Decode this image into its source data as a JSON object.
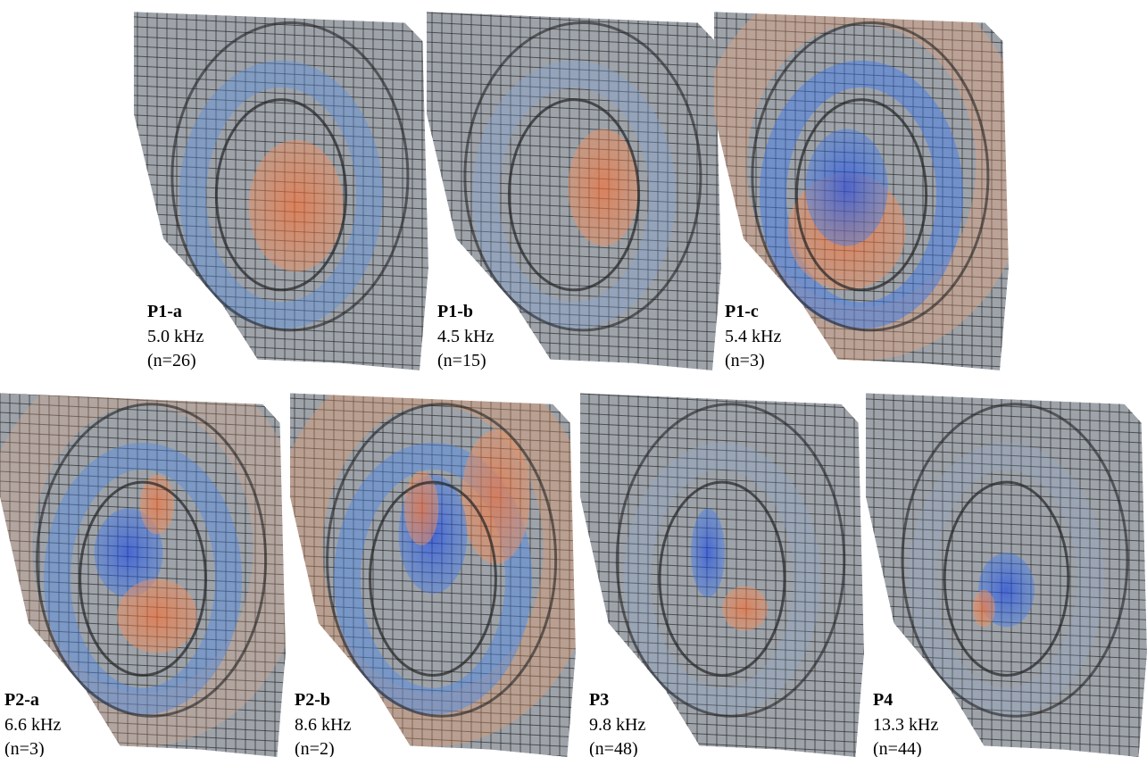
{
  "panels": [
    {
      "label": "P1-a",
      "frequency": "5.0 kHz",
      "count": "(n=26)"
    },
    {
      "label": "P1-b",
      "frequency": "4.5 kHz",
      "count": "(n=15)"
    },
    {
      "label": "P1-c",
      "frequency": "5.4 kHz",
      "count": "(n=3)"
    },
    {
      "label": "P2-a",
      "frequency": "6.6 kHz",
      "count": "(n=3)"
    },
    {
      "label": "P2-b",
      "frequency": "8.6 kHz",
      "count": "(n=2)"
    },
    {
      "label": "P3",
      "frequency": "9.8 kHz",
      "count": "(n=48)"
    },
    {
      "label": "P4",
      "frequency": "13.3 kHz",
      "count": "(n=44)"
    }
  ]
}
